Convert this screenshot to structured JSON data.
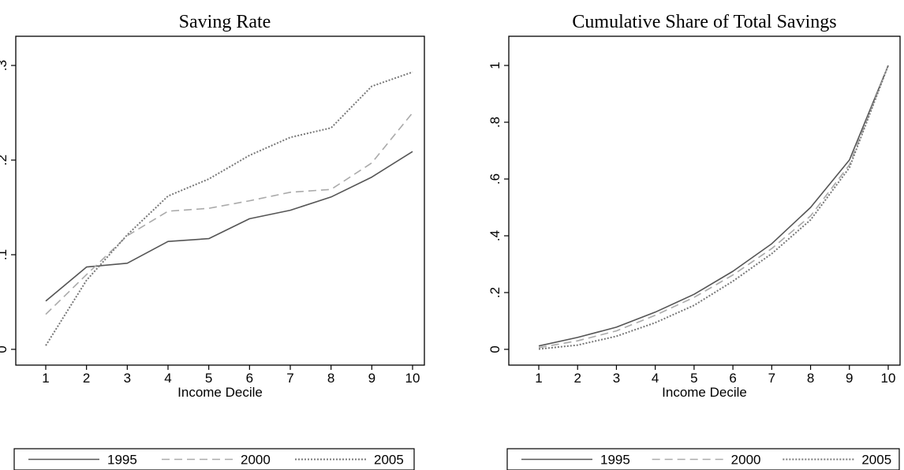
{
  "chart_data": [
    {
      "type": "line",
      "title": "Saving Rate",
      "xlabel": "Income Decile",
      "ylabel": "",
      "x": [
        1,
        2,
        3,
        4,
        5,
        6,
        7,
        8,
        9,
        10
      ],
      "xlim": [
        1,
        10
      ],
      "ylim": [
        0,
        0.3
      ],
      "xticks": [
        "1",
        "2",
        "3",
        "4",
        "5",
        "6",
        "7",
        "8",
        "9",
        "10"
      ],
      "yticks": [
        {
          "value": 0,
          "label": "0"
        },
        {
          "value": 0.1,
          "label": ".1"
        },
        {
          "value": 0.2,
          "label": ".2"
        },
        {
          "value": 0.3,
          "label": ".3"
        }
      ],
      "grid": false,
      "legend_position": "bottom",
      "series": [
        {
          "name": "1995",
          "style": "solid",
          "color": "#555555",
          "values": [
            0.051,
            0.087,
            0.091,
            0.114,
            0.117,
            0.138,
            0.147,
            0.161,
            0.182,
            0.209
          ]
        },
        {
          "name": "2000",
          "style": "dashed",
          "color": "#aaaaaa",
          "values": [
            0.037,
            0.079,
            0.12,
            0.146,
            0.149,
            0.157,
            0.166,
            0.169,
            0.197,
            0.25
          ]
        },
        {
          "name": "2005",
          "style": "dotted",
          "color": "#777777",
          "values": [
            0.004,
            0.073,
            0.121,
            0.162,
            0.18,
            0.205,
            0.224,
            0.234,
            0.278,
            0.293
          ]
        }
      ]
    },
    {
      "type": "line",
      "title": "Cumulative Share of Total Savings",
      "xlabel": "Income Decile",
      "ylabel": "",
      "x": [
        1,
        2,
        3,
        4,
        5,
        6,
        7,
        8,
        9,
        10
      ],
      "xlim": [
        1,
        10
      ],
      "ylim": [
        0,
        1
      ],
      "xticks": [
        "1",
        "2",
        "3",
        "4",
        "5",
        "6",
        "7",
        "8",
        "9",
        "10"
      ],
      "yticks": [
        {
          "value": 0,
          "label": "0"
        },
        {
          "value": 0.2,
          "label": ".2"
        },
        {
          "value": 0.4,
          "label": ".4"
        },
        {
          "value": 0.6,
          "label": ".6"
        },
        {
          "value": 0.8,
          "label": ".8"
        },
        {
          "value": 1,
          "label": "1"
        }
      ],
      "grid": false,
      "legend_position": "bottom",
      "series": [
        {
          "name": "1995",
          "style": "solid",
          "color": "#555555",
          "values": [
            0.012,
            0.042,
            0.078,
            0.131,
            0.194,
            0.275,
            0.372,
            0.5,
            0.667,
            1.0
          ]
        },
        {
          "name": "2000",
          "style": "dashed",
          "color": "#aaaaaa",
          "values": [
            0.006,
            0.03,
            0.065,
            0.12,
            0.183,
            0.262,
            0.355,
            0.47,
            0.65,
            1.0
          ]
        },
        {
          "name": "2005",
          "style": "dotted",
          "color": "#777777",
          "values": [
            0.001,
            0.015,
            0.046,
            0.094,
            0.155,
            0.24,
            0.337,
            0.456,
            0.64,
            1.0
          ]
        }
      ]
    }
  ]
}
